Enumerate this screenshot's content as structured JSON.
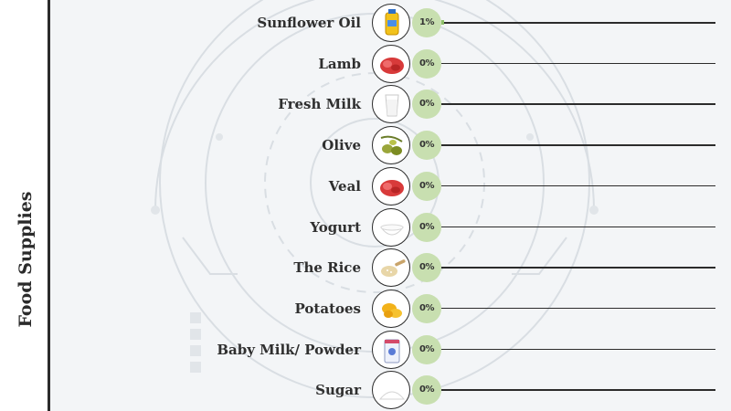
{
  "sidebar": {
    "title": "Food Supplies"
  },
  "colors": {
    "badge": "#c8dfb0",
    "line": "#2b2b2b",
    "fill": "#8fbf6a"
  },
  "chart_data": {
    "type": "bar",
    "orientation": "horizontal",
    "value_unit": "%",
    "categories": [
      "Sunflower Oil",
      "Lamb",
      "Fresh Milk",
      "Olive",
      "Veal",
      "Yogurt",
      "The Rice",
      "Potatoes",
      "Baby Milk/ Powder",
      "Sugar"
    ],
    "values": [
      1,
      0,
      0,
      0,
      0,
      0,
      0,
      0,
      0,
      0
    ],
    "value_labels": [
      "1%",
      "0%",
      "0%",
      "0%",
      "0%",
      "0%",
      "0%",
      "0%",
      "0%",
      "0%"
    ],
    "icons": [
      "oil-bottle-icon",
      "meat-icon",
      "milk-glass-icon",
      "olive-icon",
      "meat-icon",
      "yogurt-bowl-icon",
      "rice-spoon-icon",
      "potato-icon",
      "milk-powder-can-icon",
      "sugar-pile-icon"
    ],
    "xlim": [
      0,
      100
    ],
    "grid": false,
    "legend": "none"
  }
}
